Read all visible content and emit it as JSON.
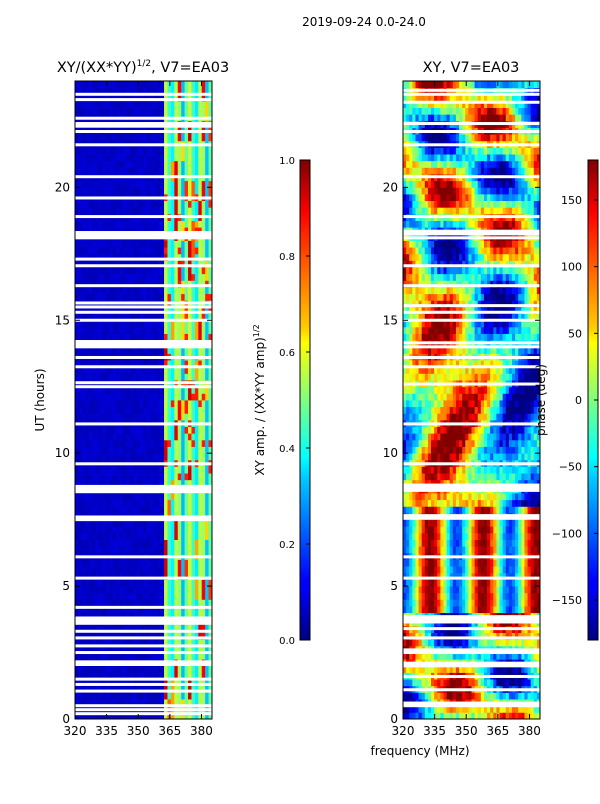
{
  "figure_title": "2019-09-24 0.0-24.0",
  "shared_xlabel": "frequency (MHz)",
  "chart_data": [
    {
      "type": "heatmap",
      "title_prefix": "XY/(XX*YY)",
      "title_sup": "1/2",
      "title_suffix": ", V7=EA03",
      "xlabel": "",
      "ylabel": "UT (hours)",
      "xlim": [
        320,
        385
      ],
      "ylim": [
        0,
        24
      ],
      "xticks": [
        320,
        335,
        350,
        365,
        380
      ],
      "yticks": [
        0,
        5,
        10,
        15,
        20
      ],
      "colorbar": {
        "label_prefix": "XY amp. / (XX*YY amp)",
        "label_sup": "1/2",
        "range": [
          0.0,
          1.0
        ],
        "ticks": [
          "0.0",
          "0.2",
          "0.4",
          "0.6",
          "0.8",
          "1.0"
        ]
      },
      "gaps_hours": [
        0.2,
        0.35,
        0.5,
        1.05,
        1.3,
        1.5,
        2.05,
        2.15,
        2.5,
        2.75,
        3.05,
        3.3,
        3.6,
        3.7,
        3.8,
        4.2,
        5.3,
        6.1,
        7.5,
        7.6,
        8.55,
        8.65,
        8.75,
        9.6,
        11.1,
        12.5,
        12.65,
        13.25,
        13.6,
        14.0,
        14.1,
        14.2,
        15.0,
        15.3,
        15.5,
        15.65,
        16.3,
        17.05,
        17.3,
        18.1,
        18.2,
        18.3,
        18.9,
        19.6,
        20.4,
        21.6,
        22.1,
        22.3,
        22.4,
        22.6,
        23.3,
        23.5
      ],
      "signal_band_mhz": [
        363,
        381
      ],
      "low_band_value": 0.05,
      "high_band_value": 0.45
    },
    {
      "type": "heatmap",
      "title_prefix": "XY, V7=EA03",
      "title_sup": "",
      "title_suffix": "",
      "xlabel": "",
      "ylabel": "",
      "xlim": [
        320,
        385
      ],
      "ylim": [
        0,
        24
      ],
      "xticks": [
        320,
        335,
        350,
        365,
        380
      ],
      "yticks": [
        0,
        5,
        10,
        15,
        20
      ],
      "colorbar": {
        "label_prefix": "phase (deg)",
        "label_sup": "",
        "range": [
          -180,
          180
        ],
        "ticks": [
          "−150",
          "−100",
          "−50",
          "0",
          "50",
          "100",
          "150"
        ]
      },
      "gaps_hours": [
        0.5,
        0.6,
        1.1,
        1.6,
        2.0,
        2.1,
        2.5,
        2.6,
        3.05,
        3.4,
        3.65,
        3.75,
        3.85,
        5.3,
        6.1,
        7.55,
        7.65,
        8.6,
        8.7,
        8.8,
        9.6,
        11.1,
        12.6,
        13.25,
        13.6,
        14.0,
        14.15,
        15.0,
        15.3,
        15.55,
        16.3,
        17.05,
        18.1,
        18.25,
        18.35,
        18.9,
        20.4,
        21.6,
        22.1,
        22.4,
        23.2,
        23.5,
        23.65
      ],
      "signal_band_mhz": [
        320,
        385
      ],
      "low_band_value": 0,
      "high_band_value": 0
    }
  ]
}
